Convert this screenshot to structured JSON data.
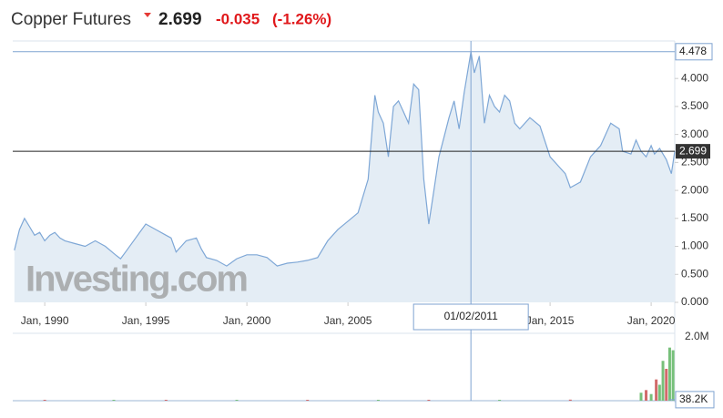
{
  "header": {
    "title": "Copper Futures",
    "last": "2.699",
    "change": "-0.035",
    "change_pct": "(-1.26%)"
  },
  "chart_data": {
    "type": "area",
    "watermark": "Investing.com",
    "color": "#7ea7d6",
    "fill": "#e4edf5",
    "x": [
      "Jul, 1988",
      "Oct, 1988",
      "Jan, 1989",
      "Apr, 1989",
      "Jul, 1989",
      "Oct, 1989",
      "Jan, 1990",
      "Apr, 1990",
      "Jul, 1990",
      "Oct, 1990",
      "Jan, 1991",
      "Jul, 1991",
      "Jan, 1992",
      "Jul, 1992",
      "Jan, 1993",
      "Jul, 1993",
      "Oct, 1993",
      "Jan, 1994",
      "Jul, 1994",
      "Jan, 1995",
      "Jul, 1995",
      "Jan, 1996",
      "Apr, 1996",
      "Jul, 1996",
      "Oct, 1996",
      "Jan, 1997",
      "Jul, 1997",
      "Oct, 1997",
      "Jan, 1998",
      "Jul, 1998",
      "Jan, 1999",
      "Jul, 1999",
      "Jan, 2000",
      "Jul, 2000",
      "Jan, 2001",
      "Jul, 2001",
      "Jan, 2002",
      "Jul, 2002",
      "Jan, 2003",
      "Jul, 2003",
      "Jan, 2004",
      "Jul, 2004",
      "Jan, 2005",
      "Jul, 2005",
      "Jan, 2006",
      "May, 2006",
      "Jul, 2006",
      "Oct, 2006",
      "Jan, 2007",
      "Apr, 2007",
      "Jul, 2007",
      "Oct, 2007",
      "Jan, 2008",
      "Apr, 2008",
      "Jul, 2008",
      "Oct, 2008",
      "Jan, 2009",
      "Apr, 2009",
      "Jul, 2009",
      "Oct, 2009",
      "Jan, 2010",
      "Apr, 2010",
      "Jul, 2010",
      "Oct, 2010",
      "Feb, 2011",
      "Apr, 2011",
      "Jul, 2011",
      "Oct, 2011",
      "Jan, 2012",
      "Apr, 2012",
      "Jul, 2012",
      "Oct, 2012",
      "Jan, 2013",
      "Apr, 2013",
      "Jul, 2013",
      "Jan, 2014",
      "Jul, 2014",
      "Jan, 2015",
      "Jul, 2015",
      "Oct, 2015",
      "Jan, 2016",
      "Jul, 2016",
      "Jan, 2017",
      "Jul, 2017",
      "Jan, 2018",
      "Jun, 2018",
      "Aug, 2018",
      "Jan, 2019",
      "Apr, 2019",
      "Jul, 2019",
      "Oct, 2019",
      "Jan, 2020",
      "Mar, 2020",
      "Jun, 2020",
      "Oct, 2020",
      "Jan, 2021",
      "Mar, 2021"
    ],
    "values": [
      0.93,
      1.3,
      1.5,
      1.35,
      1.2,
      1.25,
      1.1,
      1.2,
      1.25,
      1.15,
      1.1,
      1.05,
      1.0,
      1.1,
      1.0,
      0.85,
      0.78,
      0.9,
      1.15,
      1.4,
      1.3,
      1.2,
      1.15,
      0.9,
      1.0,
      1.1,
      1.15,
      0.95,
      0.8,
      0.75,
      0.65,
      0.78,
      0.85,
      0.85,
      0.8,
      0.65,
      0.7,
      0.72,
      0.75,
      0.8,
      1.1,
      1.3,
      1.45,
      1.6,
      2.2,
      3.7,
      3.4,
      3.2,
      2.6,
      3.5,
      3.6,
      3.4,
      3.2,
      3.9,
      3.8,
      2.2,
      1.4,
      2.0,
      2.6,
      2.95,
      3.3,
      3.6,
      3.1,
      3.75,
      4.478,
      4.1,
      4.4,
      3.2,
      3.7,
      3.5,
      3.4,
      3.7,
      3.6,
      3.2,
      3.1,
      3.3,
      3.15,
      2.6,
      2.4,
      2.3,
      2.05,
      2.15,
      2.6,
      2.8,
      3.2,
      3.1,
      2.7,
      2.65,
      2.9,
      2.7,
      2.6,
      2.8,
      2.65,
      2.75,
      2.55,
      2.3,
      2.699
    ],
    "xlim": [
      "Jun, 1988",
      "Mar, 2021"
    ],
    "xticks": [
      "Jan, 1990",
      "Jan, 1995",
      "Jan, 2000",
      "Jan, 2005",
      "Jan, 2015",
      "Jan, 2020"
    ],
    "ylim": [
      0,
      4.67
    ],
    "yticks": [
      {
        "value": 0,
        "label": "0.000"
      },
      {
        "value": 0.5,
        "label": "0.500"
      },
      {
        "value": 1,
        "label": "1.000"
      },
      {
        "value": 1.5,
        "label": "1.500"
      },
      {
        "value": 2,
        "label": "2.000"
      },
      {
        "value": 2.5,
        "label": "2.500"
      },
      {
        "value": 3,
        "label": "3.000"
      },
      {
        "value": 3.5,
        "label": "3.500"
      },
      {
        "value": 4,
        "label": "4.000"
      }
    ],
    "last_price": 2.699,
    "crosshair": {
      "x": "01/02/2011",
      "y": 4.478,
      "volume": {
        "value": 38200,
        "label": "38.2K"
      }
    },
    "volume": {
      "x": [
        "Jan, 1990",
        "Jun, 1993",
        "Jan, 1996",
        "Jul, 1999",
        "Jan, 2003",
        "Jul, 2006",
        "Jan, 2009",
        "Jul, 2012",
        "Jan, 2016",
        "Jul, 2019",
        "Oct, 2019",
        "Jan, 2020",
        "Apr, 2020",
        "Jun, 2020",
        "Aug, 2020",
        "Oct, 2020",
        "Dec, 2020",
        "Feb, 2021"
      ],
      "values": [
        30000,
        25000,
        30000,
        28000,
        30000,
        32000,
        35000,
        30000,
        40000,
        300000,
        400000,
        250000,
        800000,
        600000,
        1500000,
        1200000,
        2000000,
        1900000
      ],
      "colors": [
        "#d26a6a",
        "#77c07a",
        "#d26a6a",
        "#77c07a",
        "#d26a6a",
        "#77c07a",
        "#d26a6a",
        "#77c07a",
        "#d26a6a",
        "#77c07a",
        "#d26a6a",
        "#77c07a",
        "#d26a6a",
        "#77c07a",
        "#77c07a",
        "#d26a6a",
        "#77c07a",
        "#77c07a"
      ],
      "ylim": [
        0,
        2400000
      ],
      "yticks": [
        {
          "value": 2000000,
          "label": "2.0M"
        }
      ]
    }
  }
}
